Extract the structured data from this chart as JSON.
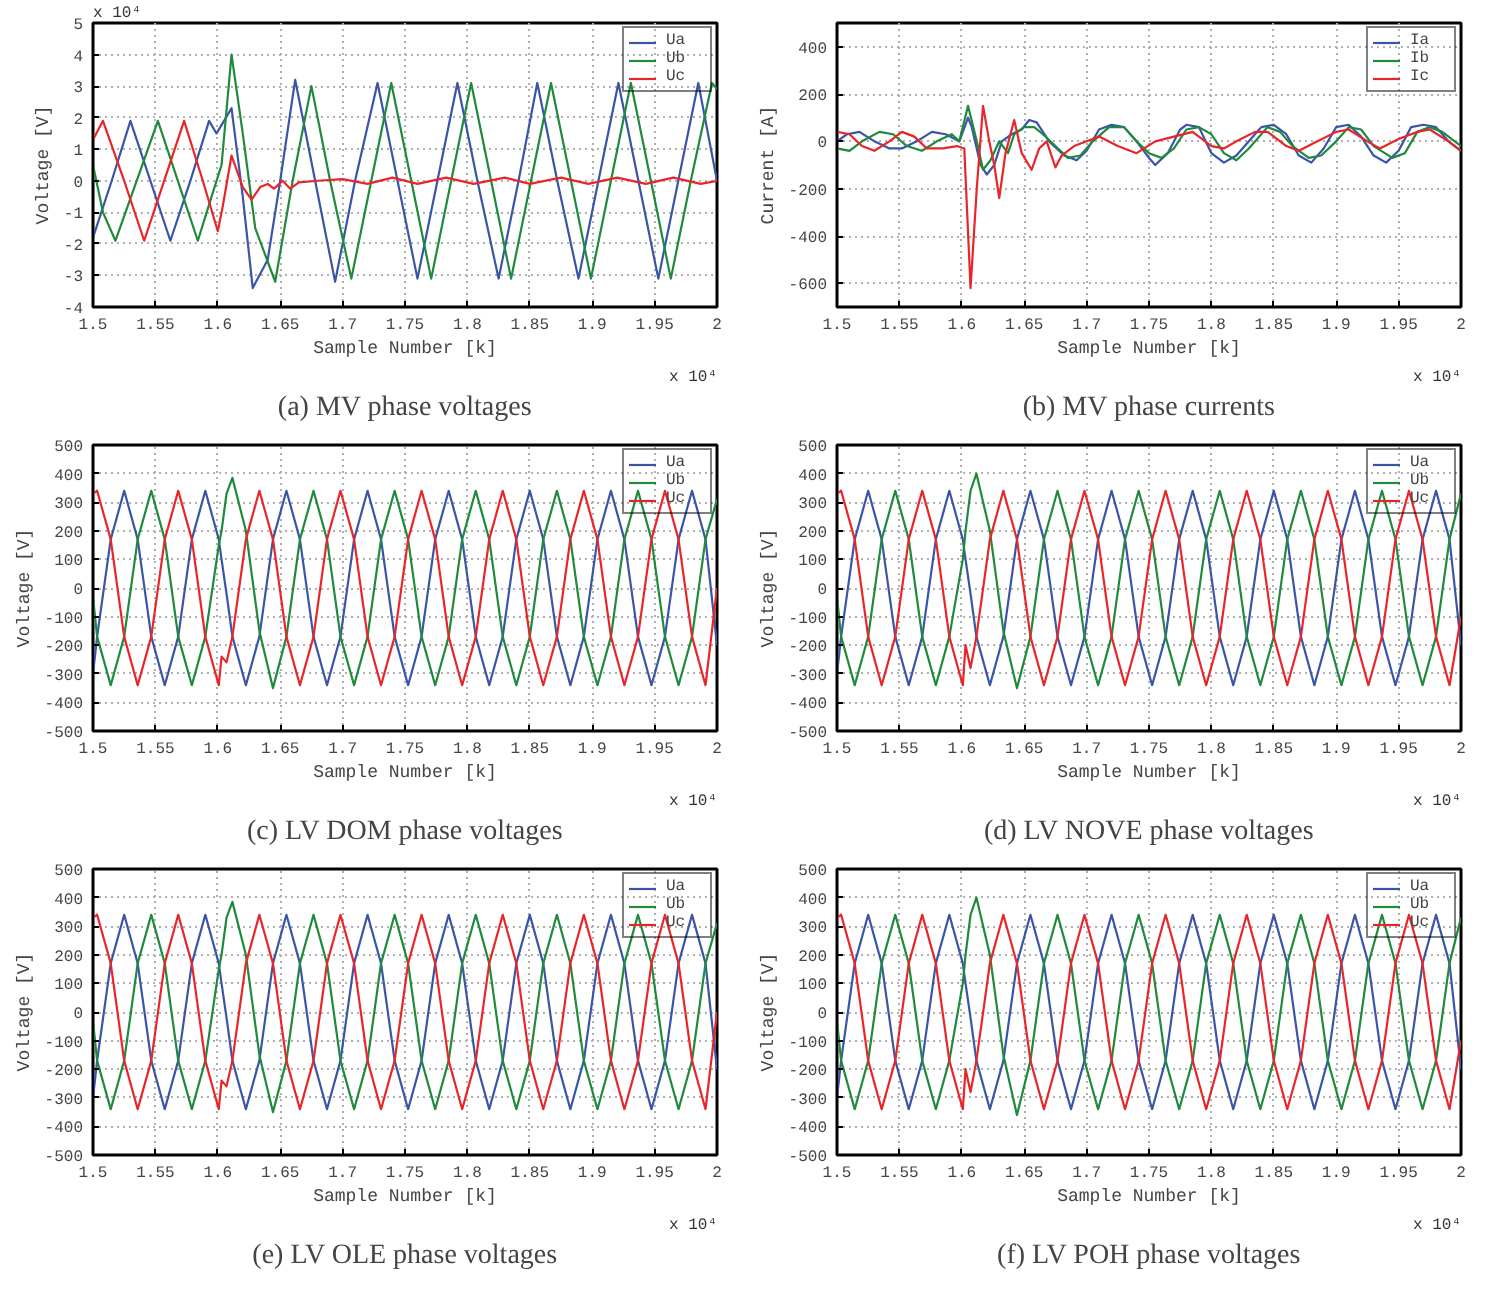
{
  "chart_data": [
    {
      "type": "line",
      "title": "(a) MV phase voltages",
      "xlabel": "Sample Number [k]",
      "ylabel": "Voltage [V]",
      "annotations": [
        "x 10⁴",
        "x 10⁴"
      ],
      "grid": true,
      "legend": "top right",
      "xlim": [
        1.5,
        2
      ],
      "ylim": [
        -4,
        5
      ],
      "xticks": [
        1.5,
        1.55,
        1.6,
        1.65,
        1.7,
        1.75,
        1.8,
        1.85,
        1.9,
        1.95,
        2
      ],
      "yticks": [
        -4,
        -3,
        -2,
        -1,
        0,
        1,
        2,
        3,
        4,
        5
      ],
      "series": [
        {
          "name": "Ua",
          "color": "#3a55a8",
          "x": [
            1.5,
            1.515,
            1.53,
            1.546,
            1.562,
            1.578,
            1.593,
            1.599,
            1.602,
            1.611,
            1.62,
            1.628,
            1.64,
            1.65,
            1.662,
            1.678,
            1.694,
            1.71,
            1.728,
            1.744,
            1.76,
            1.776,
            1.792,
            1.808,
            1.825,
            1.841,
            1.856,
            1.872,
            1.889,
            1.905,
            1.921,
            1.937,
            1.953,
            1.969,
            1.985,
            2
          ],
          "values": [
            -1.8,
            0,
            1.9,
            0,
            -1.9,
            0,
            1.9,
            1.5,
            1.7,
            2.3,
            -0.5,
            -3.4,
            -2.5,
            0,
            3.2,
            0,
            -3.2,
            0,
            3.1,
            0,
            -3.1,
            0,
            3.1,
            0,
            -3.1,
            0,
            3.1,
            0,
            -3.1,
            0,
            3.1,
            0,
            -3.1,
            0,
            3.1,
            0
          ]
        },
        {
          "name": "Ub",
          "color": "#1f8a3c",
          "x": [
            1.5,
            1.508,
            1.518,
            1.535,
            1.552,
            1.568,
            1.584,
            1.595,
            1.603,
            1.611,
            1.62,
            1.63,
            1.646,
            1.66,
            1.675,
            1.69,
            1.707,
            1.723,
            1.739,
            1.755,
            1.771,
            1.787,
            1.803,
            1.819,
            1.835,
            1.851,
            1.867,
            1.883,
            1.899,
            1.915,
            1.931,
            1.947,
            1.963,
            1.979,
            1.996,
            2
          ],
          "values": [
            0.5,
            -1,
            -1.9,
            0,
            1.9,
            0,
            -1.9,
            -0.5,
            0.5,
            4,
            1.5,
            -1.5,
            -3.2,
            0,
            3,
            0,
            -3.1,
            0,
            3.1,
            0,
            -3.1,
            0,
            3.1,
            0,
            -3.1,
            0,
            3.1,
            0,
            -3.1,
            0,
            3.1,
            0,
            -3.1,
            0,
            3.1,
            2.9
          ]
        },
        {
          "name": "Uc",
          "color": "#e8262a",
          "x": [
            1.5,
            1.508,
            1.525,
            1.541,
            1.557,
            1.573,
            1.588,
            1.6,
            1.604,
            1.611,
            1.62,
            1.627,
            1.634,
            1.64,
            1.645,
            1.652,
            1.658,
            1.665,
            1.68,
            1.7,
            1.72,
            1.74,
            1.76,
            1.783,
            1.805,
            1.83,
            1.85,
            1.875,
            1.897,
            1.92,
            1.943,
            1.965,
            1.987,
            2
          ],
          "values": [
            1.3,
            1.9,
            0,
            -1.9,
            0,
            1.9,
            0,
            -1.6,
            -0.8,
            0.8,
            -0.2,
            -0.6,
            -0.2,
            -0.1,
            -0.25,
            0,
            -0.25,
            -0.05,
            0,
            0.05,
            -0.1,
            0.1,
            -0.1,
            0.1,
            -0.1,
            0.1,
            -0.1,
            0.1,
            -0.1,
            0.1,
            -0.1,
            0.1,
            -0.1,
            0
          ]
        }
      ]
    },
    {
      "type": "line",
      "title": "(b) MV phase currents",
      "xlabel": "Sample Number [k]",
      "ylabel": "Current [A]",
      "annotations": [
        "x 10⁴"
      ],
      "grid": true,
      "legend": "top right",
      "xlim": [
        1.5,
        2
      ],
      "ylim": [
        -700,
        500
      ],
      "xticks": [
        1.5,
        1.55,
        1.6,
        1.65,
        1.7,
        1.75,
        1.8,
        1.85,
        1.9,
        1.95,
        2
      ],
      "yticks": [
        -600,
        -400,
        -200,
        0,
        200,
        400
      ],
      "series": [
        {
          "name": "Ia",
          "color": "#3a55a8",
          "x": [
            1.5,
            1.508,
            1.518,
            1.53,
            1.542,
            1.552,
            1.564,
            1.576,
            1.587,
            1.598,
            1.605,
            1.608,
            1.615,
            1.62,
            1.626,
            1.632,
            1.64,
            1.648,
            1.654,
            1.66,
            1.67,
            1.682,
            1.692,
            1.7,
            1.71,
            1.72,
            1.73,
            1.74,
            1.75,
            1.755,
            1.765,
            1.775,
            1.78,
            1.79,
            1.8,
            1.81,
            1.82,
            1.83,
            1.84,
            1.85,
            1.86,
            1.87,
            1.88,
            1.89,
            1.9,
            1.91,
            1.92,
            1.93,
            1.94,
            1.95,
            1.96,
            1.97,
            1.98,
            1.99,
            2
          ],
          "values": [
            0,
            30,
            40,
            0,
            -30,
            -30,
            0,
            40,
            30,
            0,
            100,
            60,
            -100,
            -140,
            -100,
            0,
            30,
            50,
            90,
            80,
            0,
            -60,
            -80,
            -40,
            50,
            70,
            60,
            0,
            -70,
            -100,
            -50,
            50,
            70,
            60,
            -50,
            -90,
            -60,
            0,
            60,
            70,
            30,
            -60,
            -90,
            -30,
            60,
            70,
            20,
            -60,
            -90,
            -40,
            60,
            70,
            60,
            0,
            -40
          ]
        },
        {
          "name": "Ib",
          "color": "#1f8a3c",
          "x": [
            1.5,
            1.51,
            1.52,
            1.534,
            1.545,
            1.556,
            1.568,
            1.58,
            1.592,
            1.598,
            1.605,
            1.612,
            1.617,
            1.623,
            1.63,
            1.637,
            1.642,
            1.65,
            1.658,
            1.665,
            1.675,
            1.685,
            1.695,
            1.705,
            1.718,
            1.73,
            1.74,
            1.75,
            1.76,
            1.77,
            1.78,
            1.79,
            1.8,
            1.81,
            1.82,
            1.83,
            1.845,
            1.855,
            1.865,
            1.878,
            1.888,
            1.9,
            1.91,
            1.92,
            1.93,
            1.945,
            1.955,
            1.965,
            1.975,
            1.985,
            2
          ],
          "values": [
            -30,
            -40,
            0,
            40,
            30,
            -20,
            -40,
            0,
            30,
            0,
            150,
            0,
            -120,
            -80,
            0,
            -50,
            30,
            60,
            60,
            30,
            -20,
            -70,
            -60,
            0,
            60,
            60,
            0,
            -50,
            -70,
            -30,
            50,
            60,
            30,
            -50,
            -80,
            -30,
            60,
            40,
            -20,
            -70,
            -60,
            0,
            60,
            50,
            -20,
            -70,
            -50,
            40,
            60,
            40,
            -20
          ]
        },
        {
          "name": "Ic",
          "color": "#e8262a",
          "x": [
            1.5,
            1.51,
            1.52,
            1.53,
            1.542,
            1.552,
            1.562,
            1.572,
            1.585,
            1.596,
            1.602,
            1.607,
            1.612,
            1.617,
            1.622,
            1.626,
            1.63,
            1.635,
            1.642,
            1.648,
            1.656,
            1.662,
            1.668,
            1.675,
            1.68,
            1.69,
            1.7,
            1.71,
            1.725,
            1.74,
            1.755,
            1.77,
            1.785,
            1.8,
            1.81,
            1.82,
            1.835,
            1.845,
            1.86,
            1.87,
            1.885,
            1.9,
            1.91,
            1.925,
            1.935,
            1.95,
            1.965,
            1.975,
            1.99,
            2
          ],
          "values": [
            40,
            30,
            -20,
            -40,
            0,
            40,
            20,
            -30,
            -30,
            -20,
            -30,
            -620,
            -200,
            150,
            0,
            -100,
            -240,
            -50,
            90,
            -50,
            -120,
            -30,
            0,
            -110,
            -60,
            -20,
            0,
            20,
            -20,
            -50,
            0,
            20,
            40,
            -20,
            -30,
            0,
            40,
            40,
            -20,
            -40,
            0,
            40,
            50,
            0,
            -30,
            10,
            40,
            50,
            0,
            -40
          ]
        }
      ]
    },
    {
      "type": "line",
      "title": "(c) LV DOM phase voltages",
      "xlabel": "Sample Number [k]",
      "ylabel": "Voltage [V]",
      "annotations": [
        "x 10⁴"
      ],
      "grid": true,
      "legend": "top right",
      "xlim": [
        1.5,
        2
      ],
      "ylim": [
        -500,
        500
      ],
      "xticks": [
        1.5,
        1.55,
        1.6,
        1.65,
        1.7,
        1.75,
        1.8,
        1.85,
        1.9,
        1.95,
        2
      ],
      "yticks": [
        -500,
        -400,
        -300,
        -200,
        -100,
        0,
        100,
        200,
        300,
        400,
        500
      ],
      "x": [
        1.5,
        1.5033,
        1.5142,
        1.525,
        1.5358,
        1.5467,
        1.5575,
        1.5683,
        1.5792,
        1.59,
        1.6008,
        1.603,
        1.607,
        1.6117,
        1.6225,
        1.6333,
        1.6442,
        1.655,
        1.6658,
        1.6767,
        1.6875,
        1.6983,
        1.7092,
        1.72,
        1.7308,
        1.7417,
        1.7525,
        1.7633,
        1.7742,
        1.785,
        1.7958,
        1.8067,
        1.8175,
        1.8283,
        1.8392,
        1.85,
        1.8608,
        1.8717,
        1.8825,
        1.8933,
        1.9042,
        1.915,
        1.9258,
        1.9367,
        1.9475,
        1.9583,
        1.9692,
        1.98,
        1.9908,
        2
      ],
      "series": [
        {
          "name": "Ua",
          "color": "#3a55a8",
          "values": [
            -300,
            -170,
            170,
            340,
            170,
            -170,
            -340,
            -170,
            170,
            340,
            170,
            100,
            -20,
            -170,
            -340,
            -170,
            170,
            340,
            170,
            -170,
            -340,
            -170,
            170,
            340,
            170,
            -170,
            -340,
            -170,
            170,
            340,
            170,
            -170,
            -340,
            -170,
            170,
            340,
            170,
            -170,
            -340,
            -170,
            170,
            340,
            170,
            -170,
            -340,
            -170,
            170,
            340,
            170,
            -200
          ]
        },
        {
          "name": "Ub",
          "color": "#1f8a3c",
          "values": [
            -30,
            -170,
            -340,
            -170,
            170,
            340,
            170,
            -170,
            -340,
            -170,
            150,
            200,
            330,
            385,
            200,
            -150,
            -350,
            -170,
            170,
            340,
            170,
            -170,
            -340,
            -170,
            170,
            340,
            170,
            -170,
            -340,
            -170,
            170,
            340,
            170,
            -170,
            -340,
            -170,
            170,
            340,
            170,
            -170,
            -340,
            -170,
            170,
            340,
            170,
            -170,
            -340,
            -170,
            170,
            310
          ]
        },
        {
          "name": "Uc",
          "color": "#e8262a",
          "values": [
            330,
            340,
            170,
            -170,
            -340,
            -170,
            170,
            340,
            170,
            -170,
            -340,
            -240,
            -260,
            -170,
            170,
            340,
            170,
            -170,
            -340,
            -170,
            170,
            340,
            170,
            -170,
            -340,
            -170,
            170,
            340,
            170,
            -170,
            -340,
            -170,
            170,
            340,
            170,
            -170,
            -340,
            -170,
            170,
            340,
            170,
            -170,
            -340,
            -170,
            170,
            340,
            170,
            -170,
            -340,
            0
          ]
        }
      ]
    },
    {
      "type": "line",
      "title": "(d) LV NOVE phase voltages",
      "xlabel": "Sample Number [k]",
      "ylabel": "Voltage [V]",
      "annotations": [
        "x 10⁴"
      ],
      "grid": true,
      "legend": "top right",
      "xlim": [
        1.5,
        2
      ],
      "ylim": [
        -500,
        500
      ],
      "xticks": [
        1.5,
        1.55,
        1.6,
        1.65,
        1.7,
        1.75,
        1.8,
        1.85,
        1.9,
        1.95,
        2
      ],
      "yticks": [
        -500,
        -400,
        -300,
        -200,
        -100,
        0,
        100,
        200,
        300,
        400,
        500
      ],
      "x": [
        1.5,
        1.5033,
        1.5142,
        1.525,
        1.5358,
        1.5467,
        1.5575,
        1.5683,
        1.5792,
        1.59,
        1.6008,
        1.603,
        1.607,
        1.6117,
        1.6225,
        1.6333,
        1.6442,
        1.655,
        1.6658,
        1.6767,
        1.6875,
        1.6983,
        1.7092,
        1.72,
        1.7308,
        1.7417,
        1.7525,
        1.7633,
        1.7742,
        1.785,
        1.7958,
        1.8067,
        1.8175,
        1.8283,
        1.8392,
        1.85,
        1.8608,
        1.8717,
        1.8825,
        1.8933,
        1.9042,
        1.915,
        1.9258,
        1.9367,
        1.9475,
        1.9583,
        1.9692,
        1.98,
        1.9908,
        2
      ],
      "series": [
        {
          "name": "Ua",
          "color": "#3a55a8",
          "values": [
            -300,
            -170,
            170,
            340,
            170,
            -170,
            -340,
            -170,
            170,
            340,
            170,
            100,
            -20,
            -170,
            -340,
            -170,
            170,
            340,
            170,
            -170,
            -340,
            -170,
            170,
            340,
            170,
            -170,
            -340,
            -170,
            170,
            340,
            170,
            -170,
            -340,
            -170,
            170,
            340,
            170,
            -170,
            -340,
            -170,
            170,
            340,
            170,
            -170,
            -340,
            -170,
            170,
            340,
            170,
            -200
          ]
        },
        {
          "name": "Ub",
          "color": "#1f8a3c",
          "values": [
            -30,
            -170,
            -340,
            -170,
            170,
            340,
            170,
            -170,
            -340,
            -170,
            100,
            200,
            340,
            400,
            200,
            -150,
            -350,
            -170,
            170,
            340,
            170,
            -170,
            -340,
            -170,
            170,
            340,
            170,
            -170,
            -340,
            -170,
            170,
            340,
            170,
            -170,
            -340,
            -170,
            170,
            340,
            170,
            -170,
            -340,
            -170,
            170,
            340,
            170,
            -170,
            -340,
            -170,
            170,
            330
          ]
        },
        {
          "name": "Uc",
          "color": "#e8262a",
          "values": [
            330,
            340,
            170,
            -170,
            -340,
            -170,
            170,
            340,
            170,
            -170,
            -340,
            -200,
            -280,
            -170,
            170,
            340,
            170,
            -170,
            -340,
            -170,
            170,
            340,
            170,
            -170,
            -340,
            -170,
            170,
            340,
            170,
            -170,
            -340,
            -170,
            170,
            340,
            170,
            -170,
            -340,
            -170,
            170,
            340,
            170,
            -170,
            -340,
            -170,
            170,
            340,
            170,
            -170,
            -340,
            -100
          ]
        }
      ]
    },
    {
      "type": "line",
      "title": "(e) LV OLE phase voltages",
      "xlabel": "Sample Number [k]",
      "ylabel": "Voltage [V]",
      "annotations": [
        "x 10⁴"
      ],
      "grid": true,
      "legend": "top right",
      "xlim": [
        1.5,
        2
      ],
      "ylim": [
        -500,
        500
      ],
      "xticks": [
        1.5,
        1.55,
        1.6,
        1.65,
        1.7,
        1.75,
        1.8,
        1.85,
        1.9,
        1.95,
        2
      ],
      "yticks": [
        -500,
        -400,
        -300,
        -200,
        -100,
        0,
        100,
        200,
        300,
        400,
        500
      ],
      "x": [
        1.5,
        1.5033,
        1.5142,
        1.525,
        1.5358,
        1.5467,
        1.5575,
        1.5683,
        1.5792,
        1.59,
        1.6008,
        1.603,
        1.607,
        1.6117,
        1.6225,
        1.6333,
        1.6442,
        1.655,
        1.6658,
        1.6767,
        1.6875,
        1.6983,
        1.7092,
        1.72,
        1.7308,
        1.7417,
        1.7525,
        1.7633,
        1.7742,
        1.785,
        1.7958,
        1.8067,
        1.8175,
        1.8283,
        1.8392,
        1.85,
        1.8608,
        1.8717,
        1.8825,
        1.8933,
        1.9042,
        1.915,
        1.9258,
        1.9367,
        1.9475,
        1.9583,
        1.9692,
        1.98,
        1.9908,
        2
      ],
      "series": [
        {
          "name": "Ua",
          "color": "#3a55a8",
          "values": [
            -300,
            -170,
            170,
            340,
            170,
            -170,
            -340,
            -170,
            170,
            340,
            170,
            100,
            -20,
            -170,
            -340,
            -170,
            170,
            340,
            170,
            -170,
            -340,
            -170,
            170,
            340,
            170,
            -170,
            -340,
            -170,
            170,
            340,
            170,
            -170,
            -340,
            -170,
            170,
            340,
            170,
            -170,
            -340,
            -170,
            170,
            340,
            170,
            -170,
            -340,
            -170,
            170,
            340,
            170,
            -200
          ]
        },
        {
          "name": "Ub",
          "color": "#1f8a3c",
          "values": [
            -30,
            -170,
            -340,
            -170,
            170,
            340,
            170,
            -170,
            -340,
            -170,
            150,
            200,
            330,
            385,
            200,
            -150,
            -350,
            -170,
            170,
            340,
            170,
            -170,
            -340,
            -170,
            170,
            340,
            170,
            -170,
            -340,
            -170,
            170,
            340,
            170,
            -170,
            -340,
            -170,
            170,
            340,
            170,
            -170,
            -340,
            -170,
            170,
            340,
            170,
            -170,
            -340,
            -170,
            170,
            310
          ]
        },
        {
          "name": "Uc",
          "color": "#e8262a",
          "values": [
            330,
            340,
            170,
            -170,
            -340,
            -170,
            170,
            340,
            170,
            -170,
            -340,
            -240,
            -260,
            -170,
            170,
            340,
            170,
            -170,
            -340,
            -170,
            170,
            340,
            170,
            -170,
            -340,
            -170,
            170,
            340,
            170,
            -170,
            -340,
            -170,
            170,
            340,
            170,
            -170,
            -340,
            -170,
            170,
            340,
            170,
            -170,
            -340,
            -170,
            170,
            340,
            170,
            -170,
            -340,
            0
          ]
        }
      ]
    },
    {
      "type": "line",
      "title": "(f) LV POH phase voltages",
      "xlabel": "Sample Number [k]",
      "ylabel": "Voltage [V]",
      "annotations": [
        "x 10⁴"
      ],
      "grid": true,
      "legend": "top right",
      "xlim": [
        1.5,
        2
      ],
      "ylim": [
        -500,
        500
      ],
      "xticks": [
        1.5,
        1.55,
        1.6,
        1.65,
        1.7,
        1.75,
        1.8,
        1.85,
        1.9,
        1.95,
        2
      ],
      "yticks": [
        -500,
        -400,
        -300,
        -200,
        -100,
        0,
        100,
        200,
        300,
        400,
        500
      ],
      "x": [
        1.5,
        1.5033,
        1.5142,
        1.525,
        1.5358,
        1.5467,
        1.5575,
        1.5683,
        1.5792,
        1.59,
        1.6008,
        1.603,
        1.607,
        1.6117,
        1.6225,
        1.6333,
        1.6442,
        1.655,
        1.6658,
        1.6767,
        1.6875,
        1.6983,
        1.7092,
        1.72,
        1.7308,
        1.7417,
        1.7525,
        1.7633,
        1.7742,
        1.785,
        1.7958,
        1.8067,
        1.8175,
        1.8283,
        1.8392,
        1.85,
        1.8608,
        1.8717,
        1.8825,
        1.8933,
        1.9042,
        1.915,
        1.9258,
        1.9367,
        1.9475,
        1.9583,
        1.9692,
        1.98,
        1.9908,
        2
      ],
      "series": [
        {
          "name": "Ua",
          "color": "#3a55a8",
          "values": [
            -300,
            -170,
            170,
            340,
            170,
            -170,
            -340,
            -170,
            170,
            340,
            170,
            100,
            -20,
            -170,
            -340,
            -170,
            170,
            340,
            170,
            -170,
            -340,
            -170,
            170,
            340,
            170,
            -170,
            -340,
            -170,
            170,
            340,
            170,
            -170,
            -340,
            -170,
            170,
            340,
            170,
            -170,
            -340,
            -170,
            170,
            340,
            170,
            -170,
            -340,
            -170,
            170,
            340,
            170,
            -200
          ]
        },
        {
          "name": "Ub",
          "color": "#1f8a3c",
          "values": [
            -30,
            -170,
            -340,
            -170,
            170,
            340,
            170,
            -170,
            -340,
            -170,
            100,
            200,
            340,
            400,
            200,
            -150,
            -360,
            -170,
            170,
            340,
            170,
            -170,
            -340,
            -170,
            170,
            340,
            170,
            -170,
            -340,
            -170,
            170,
            340,
            170,
            -170,
            -340,
            -170,
            170,
            340,
            170,
            -170,
            -340,
            -170,
            170,
            340,
            170,
            -170,
            -340,
            -170,
            170,
            330
          ]
        },
        {
          "name": "Uc",
          "color": "#e8262a",
          "values": [
            330,
            340,
            170,
            -170,
            -340,
            -170,
            170,
            340,
            170,
            -170,
            -340,
            -200,
            -280,
            -170,
            170,
            340,
            170,
            -170,
            -340,
            -170,
            170,
            340,
            170,
            -170,
            -340,
            -170,
            170,
            340,
            170,
            -170,
            -340,
            -170,
            170,
            340,
            170,
            -170,
            -340,
            -170,
            170,
            340,
            170,
            -170,
            -340,
            -170,
            170,
            340,
            170,
            -170,
            -340,
            -100
          ]
        }
      ]
    }
  ]
}
